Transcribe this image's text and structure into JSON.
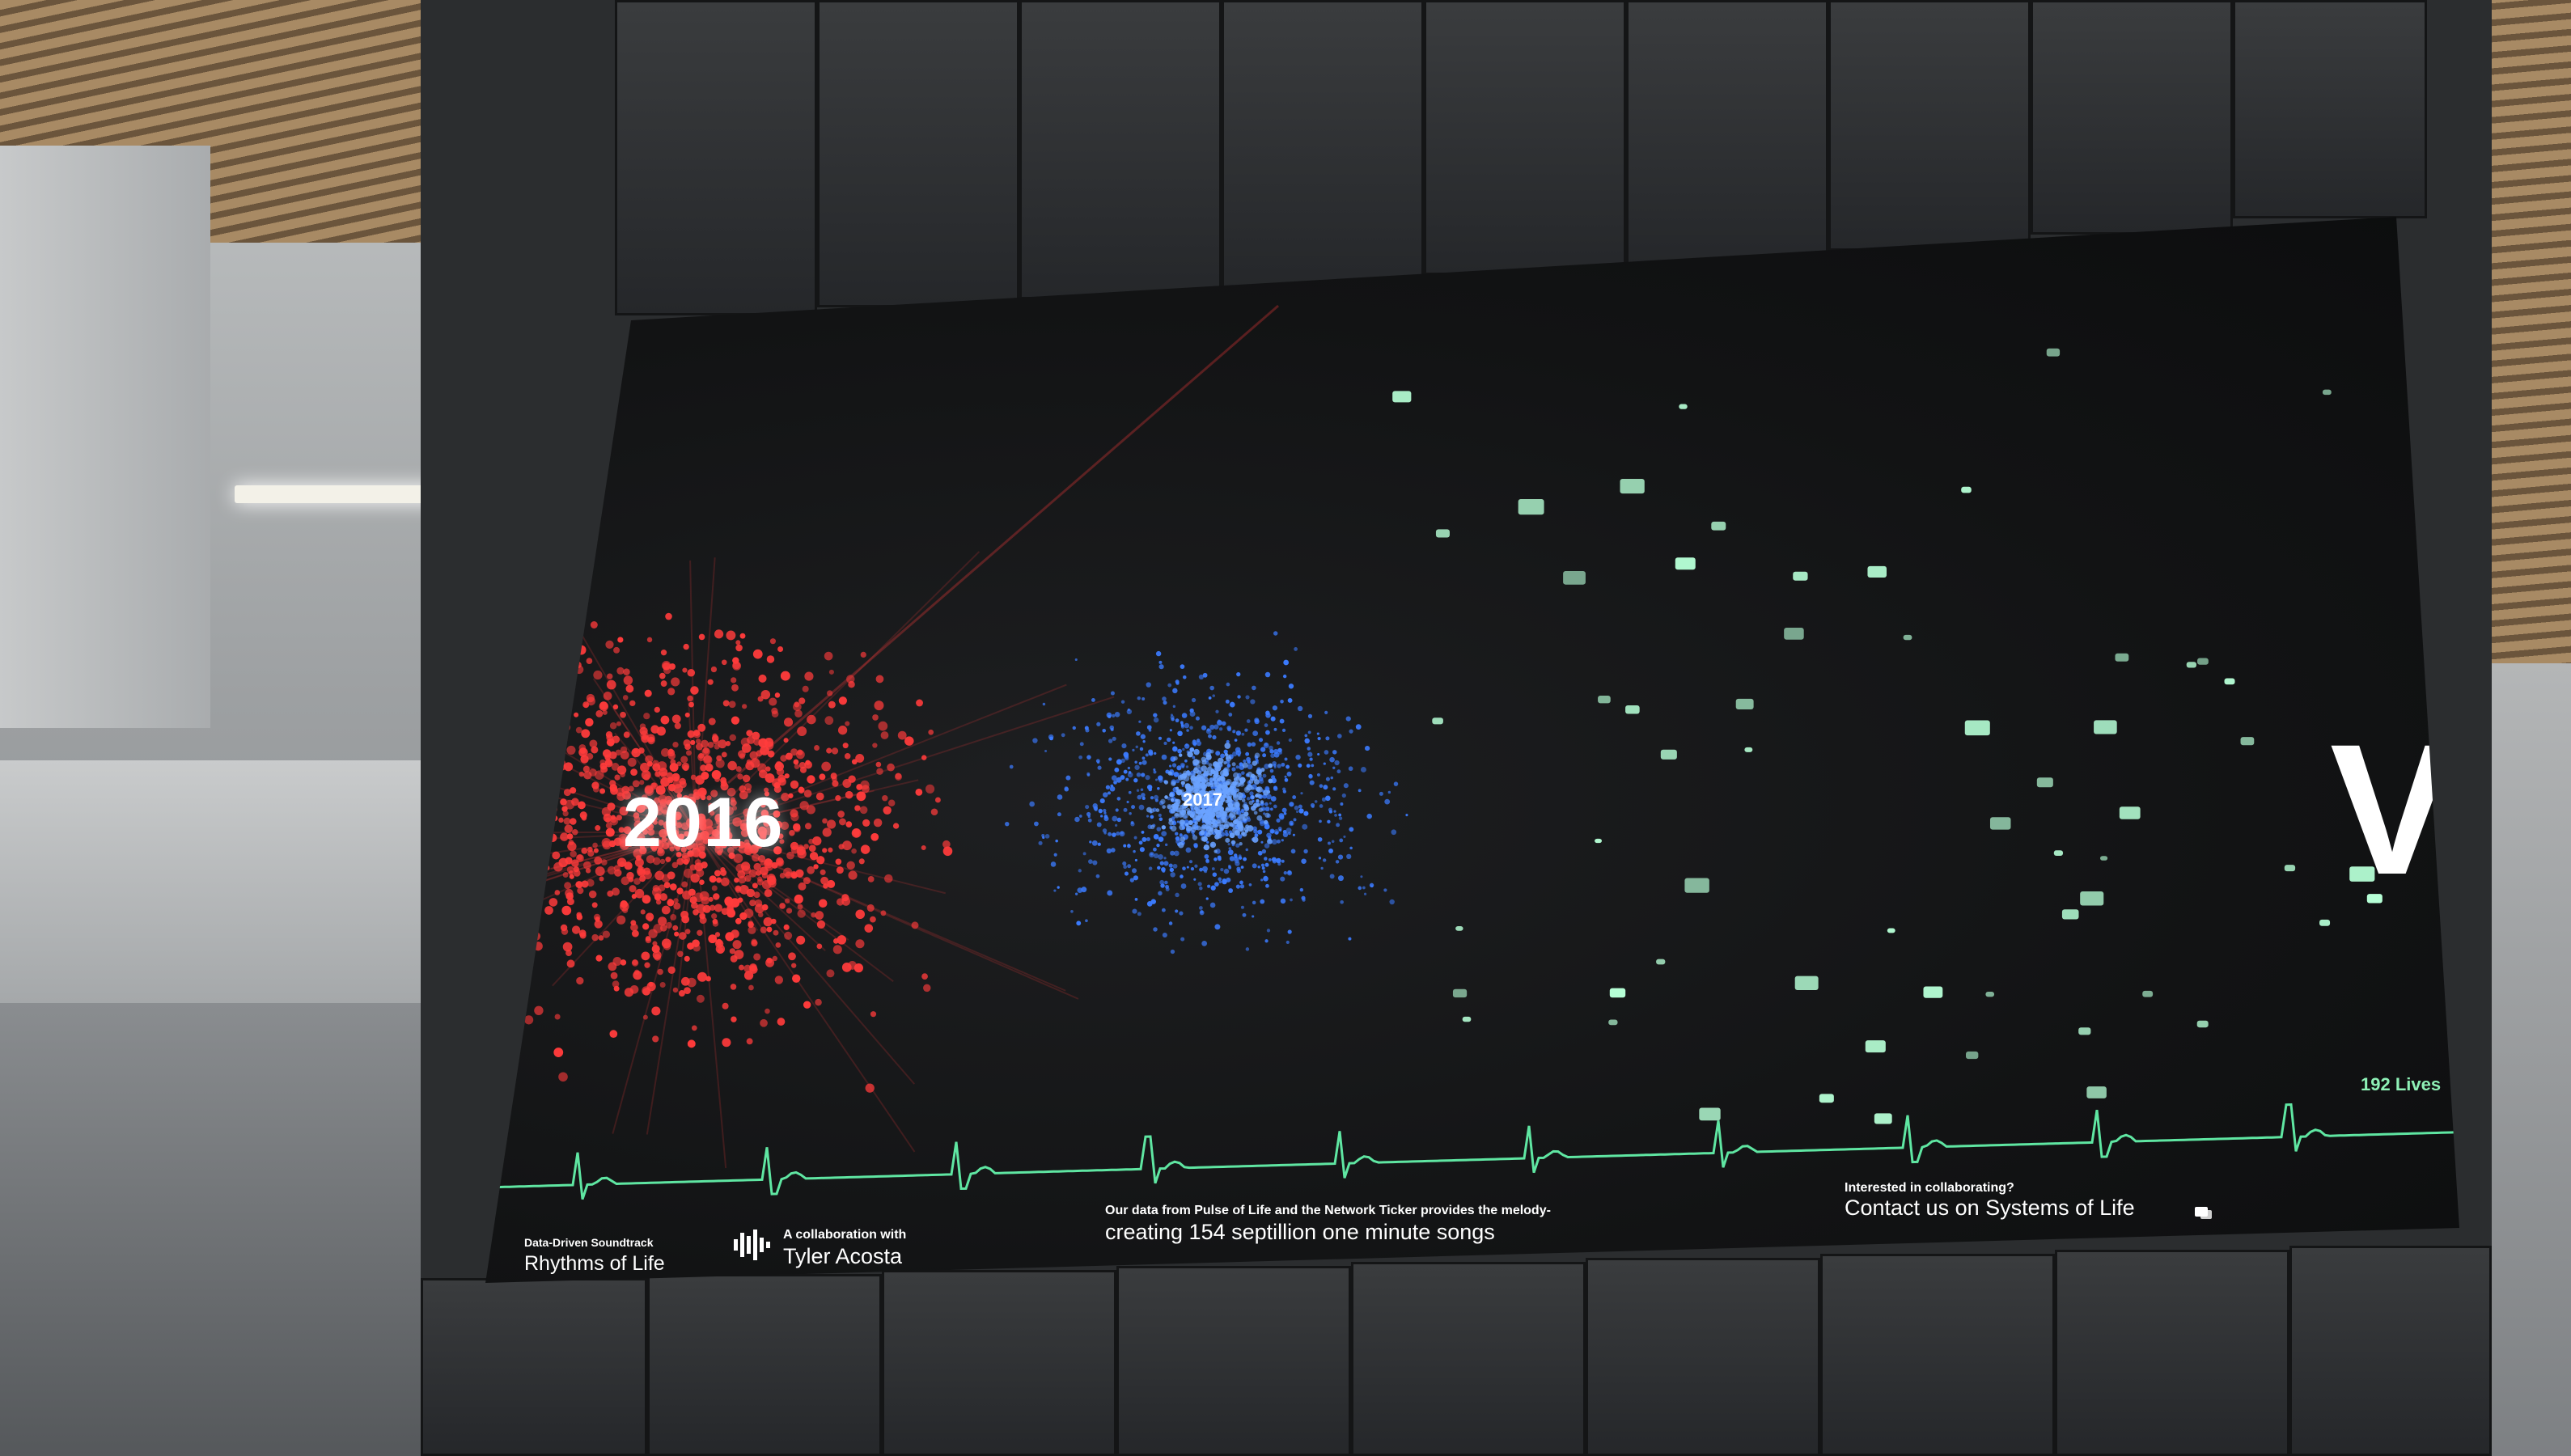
{
  "display": {
    "cluster_labels": {
      "left": "2016",
      "center": "2017"
    },
    "lives_counter": "192 Lives",
    "partial_letter": "V",
    "heartbeat_color": "#5fe6a2",
    "particle_colors": {
      "cluster_2016": "#ff3b3b",
      "cluster_2017": "#3b7bff",
      "future": "#b6ffd6"
    }
  },
  "footer": {
    "soundtrack": {
      "kicker": "Data-Driven Soundtrack",
      "title": "Rhythms of Life"
    },
    "collaboration": {
      "kicker": "A collaboration with",
      "name": "Tyler Acosta",
      "icon": "sound-wave-icon"
    },
    "data_source": {
      "line1": "Our data from Pulse of Life and the Network Ticker provides the melody-",
      "line2": "creating 154 septillion one minute songs"
    },
    "contact": {
      "kicker": "Interested in collaborating?",
      "text": "Contact us on Systems of Life",
      "icon": "chat-icon"
    }
  }
}
